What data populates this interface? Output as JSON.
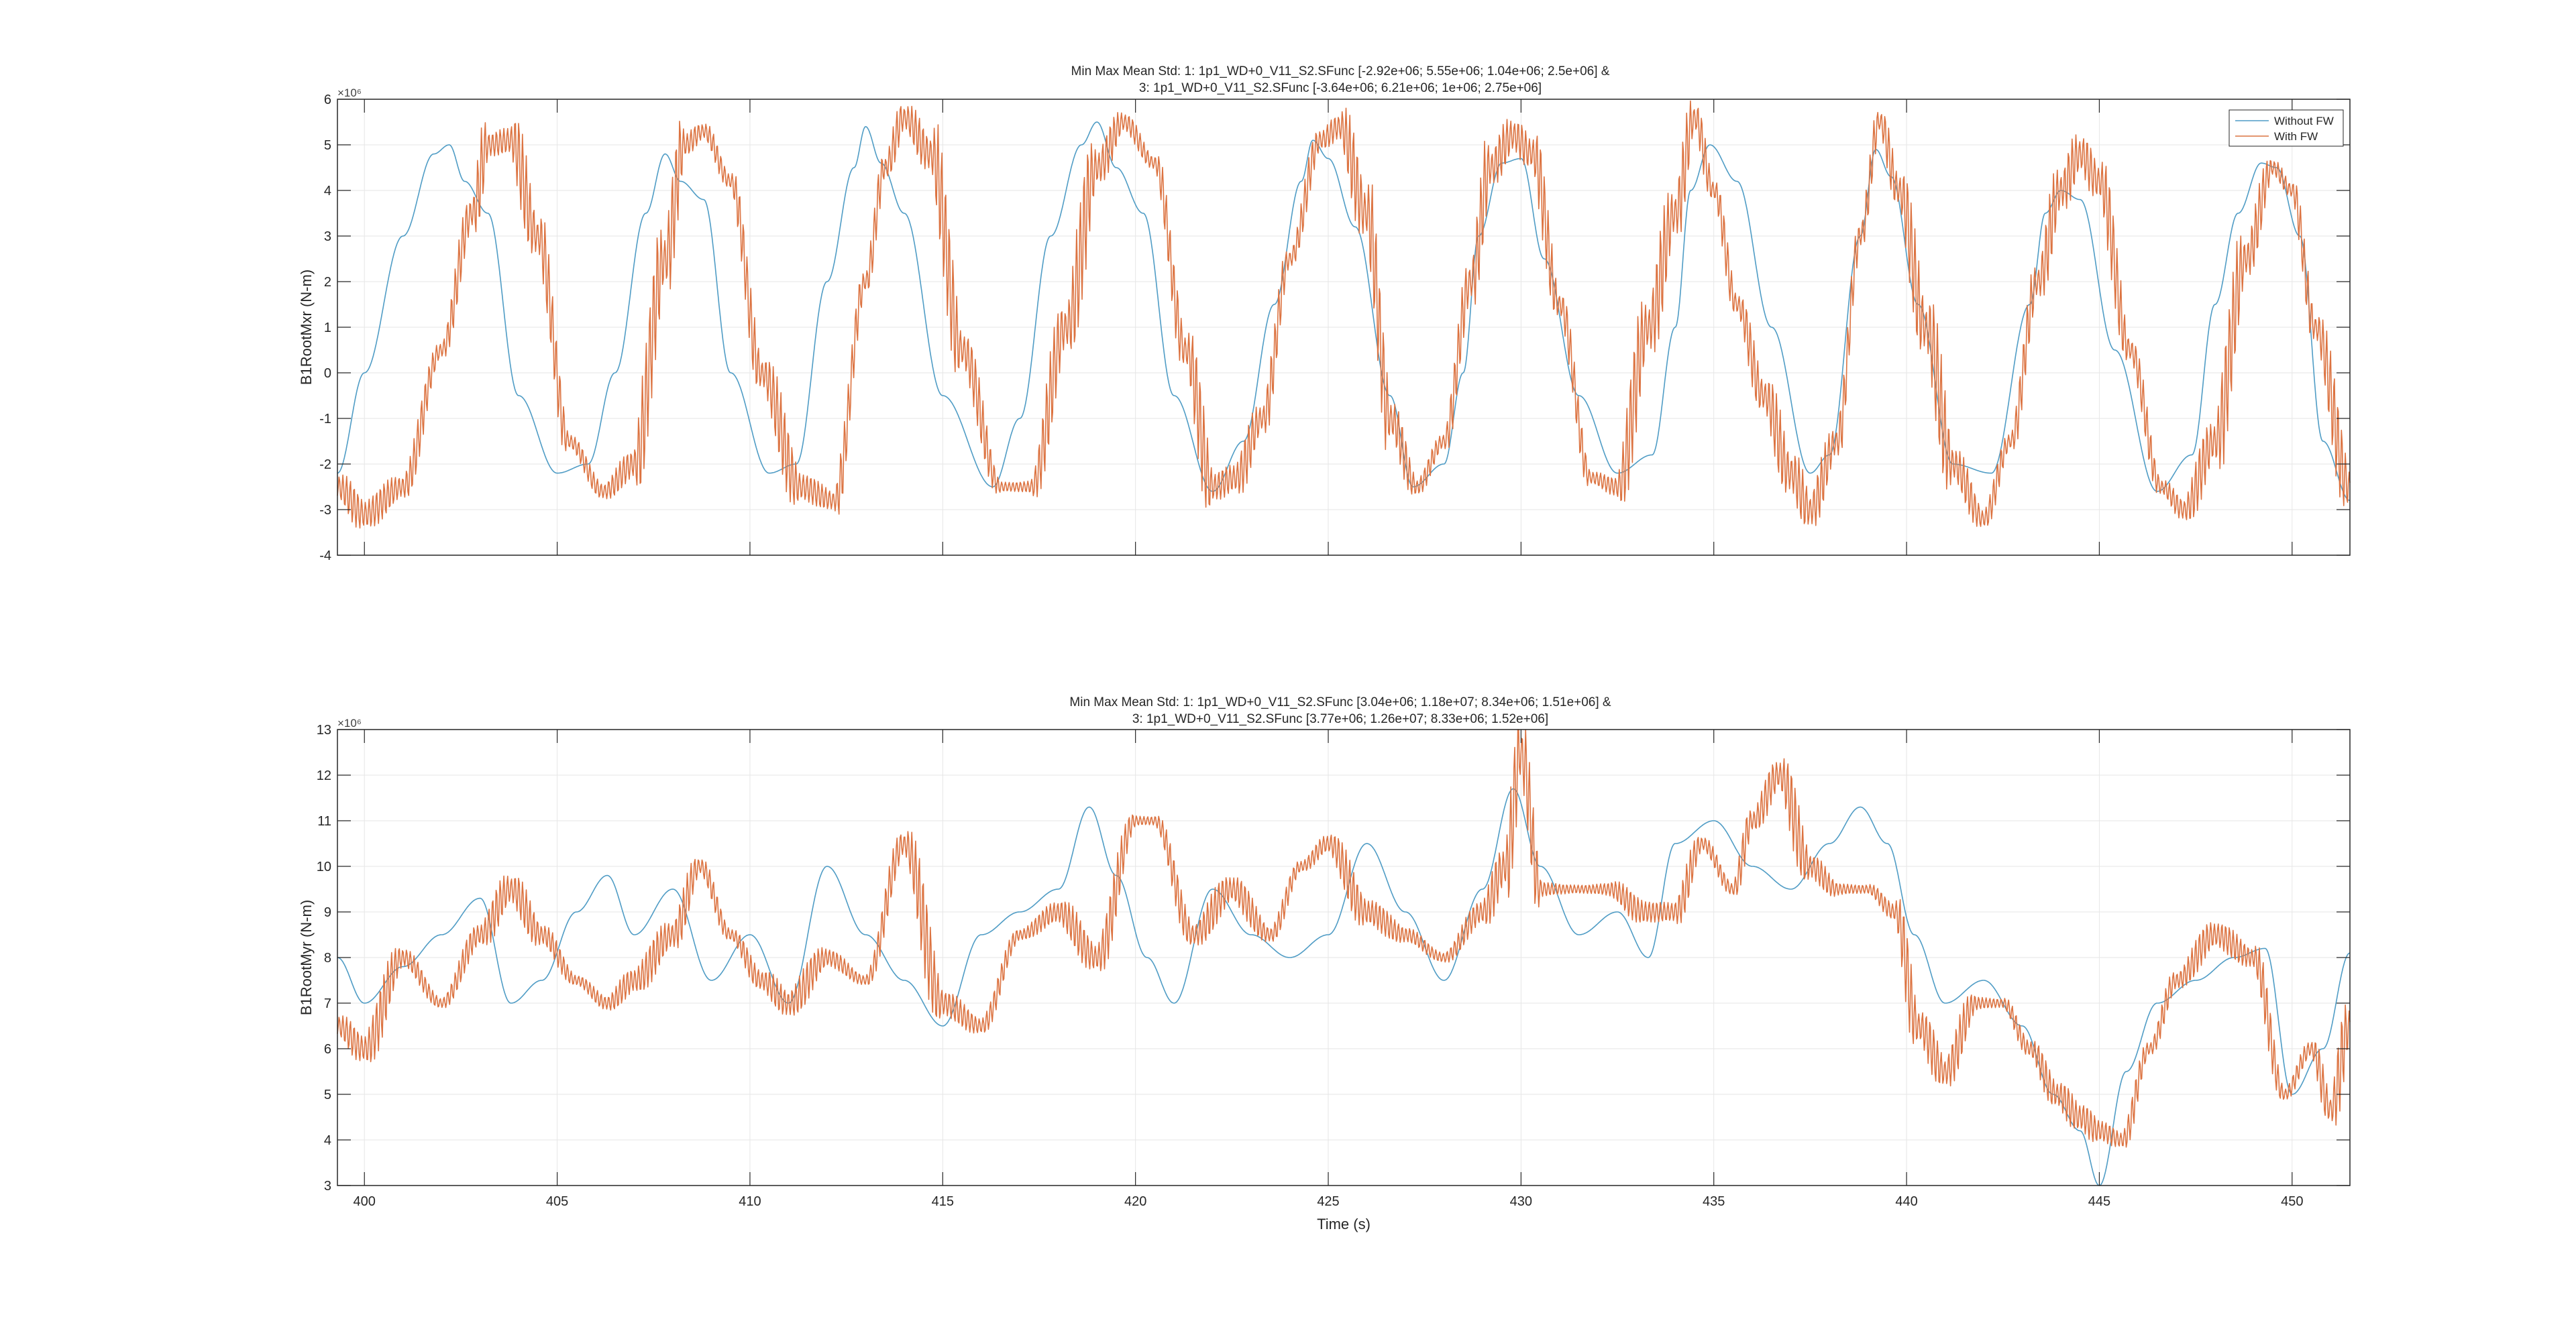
{
  "chart_data": [
    {
      "type": "line",
      "title_line1": "Min Max Mean Std: 1: 1p1_WD+0_V11_S2.SFunc [-2.92e+06; 5.55e+06; 1.04e+06; 2.5e+06] &",
      "title_line2": "3: 1p1_WD+0_V11_S2.SFunc [-3.64e+06; 6.21e+06; 1e+06; 2.75e+06]",
      "xlabel": "",
      "ylabel": "B1RootMxr (N-m)",
      "y_exponent": "×10⁶",
      "xlim": [
        399.3,
        451.5
      ],
      "ylim": [
        -4,
        6
      ],
      "yticks": [
        "-4",
        "-3",
        "-2",
        "-1",
        "0",
        "1",
        "2",
        "3",
        "4",
        "5",
        "6"
      ],
      "ytick_values": [
        -4,
        -3,
        -2,
        -1,
        0,
        1,
        2,
        3,
        4,
        5,
        6
      ],
      "xtick_values": [
        400,
        405,
        410,
        415,
        420,
        425,
        430,
        435,
        440,
        445,
        450
      ],
      "grid": true,
      "legend": {
        "position": "top-right",
        "entries": [
          "Without FW",
          "With FW"
        ]
      },
      "series": [
        {
          "name": "Without FW",
          "color": "#4f9cc5",
          "vib_amp": 0,
          "x": [
            399.3,
            400.0,
            401.0,
            401.8,
            402.2,
            402.6,
            403.2,
            404.0,
            405.0,
            405.8,
            406.5,
            407.3,
            407.8,
            408.2,
            408.8,
            409.5,
            410.5,
            411.2,
            412.0,
            412.7,
            413.0,
            413.4,
            414.0,
            415.0,
            416.3,
            417.0,
            417.8,
            418.6,
            419.0,
            419.5,
            420.2,
            421.0,
            422.0,
            422.8,
            423.6,
            424.3,
            424.6,
            425.0,
            425.7,
            426.6,
            427.2,
            428.0,
            428.5,
            428.9,
            429.5,
            430.0,
            430.6,
            431.5,
            432.5,
            433.4,
            434.0,
            434.4,
            434.9,
            435.6,
            436.5,
            437.5,
            438.0,
            438.8,
            439.2,
            439.6,
            440.3,
            441.2,
            442.2,
            443.2,
            443.6,
            444.0,
            444.5,
            445.4,
            446.5,
            447.4,
            448.0,
            448.6,
            449.2,
            449.6,
            450.2,
            450.8,
            451.5
          ],
          "y": [
            -2.2,
            0.0,
            3.0,
            4.8,
            5.0,
            4.2,
            3.5,
            -0.5,
            -2.2,
            -2.0,
            0.0,
            3.5,
            4.8,
            4.2,
            3.8,
            0.0,
            -2.2,
            -2.0,
            2.0,
            4.5,
            5.4,
            4.6,
            3.5,
            -0.5,
            -2.5,
            -1.0,
            3.0,
            5.0,
            5.5,
            4.5,
            3.5,
            -0.5,
            -2.6,
            -1.5,
            1.5,
            4.2,
            5.1,
            4.7,
            3.2,
            -0.5,
            -2.5,
            -2.0,
            0.0,
            3.0,
            4.6,
            4.7,
            2.5,
            -0.5,
            -2.2,
            -1.8,
            1.0,
            4.0,
            5.0,
            4.2,
            1.0,
            -2.2,
            -1.8,
            3.0,
            4.9,
            4.3,
            1.5,
            -2.0,
            -2.2,
            1.5,
            3.5,
            4.0,
            3.8,
            0.5,
            -2.6,
            -1.8,
            1.5,
            3.5,
            4.6,
            4.5,
            3.0,
            -1.5,
            -2.8
          ]
        },
        {
          "name": "With FW",
          "color": "#dc7341",
          "vib_amp": 1.0,
          "x": [
            399.3,
            400.0,
            401.0,
            402.0,
            402.8,
            403.2,
            403.8,
            404.5,
            405.3,
            406.2,
            407.0,
            407.8,
            408.3,
            408.8,
            409.5,
            410.3,
            411.3,
            412.2,
            413.0,
            413.5,
            414.0,
            414.7,
            415.5,
            416.5,
            417.3,
            418.2,
            419.0,
            419.7,
            420.5,
            421.3,
            422.0,
            422.6,
            423.3,
            424.0,
            424.8,
            425.3,
            426.0,
            426.6,
            427.3,
            428.0,
            428.7,
            429.2,
            429.8,
            430.3,
            431.0,
            431.8,
            432.5,
            433.3,
            434.0,
            434.5,
            435.0,
            435.6,
            436.3,
            437.0,
            437.5,
            438.2,
            438.8,
            439.3,
            439.8,
            440.5,
            441.2,
            442.0,
            442.7,
            443.4,
            444.0,
            444.5,
            445.0,
            445.8,
            446.6,
            447.2,
            448.0,
            448.8,
            449.5,
            450.0,
            450.6,
            451.5
          ],
          "y": [
            -2.5,
            -3.1,
            -2.5,
            0.5,
            3.5,
            5.0,
            5.1,
            3.0,
            -1.5,
            -2.6,
            -2.0,
            2.5,
            5.0,
            5.3,
            4.2,
            0.0,
            -2.5,
            -2.8,
            2.0,
            4.5,
            5.6,
            4.8,
            0.5,
            -2.5,
            -2.5,
            1.0,
            4.5,
            5.5,
            4.6,
            0.5,
            -2.5,
            -2.3,
            -1.0,
            2.5,
            5.1,
            5.4,
            3.5,
            -1.0,
            -2.5,
            -1.5,
            2.0,
            4.5,
            5.2,
            4.8,
            1.5,
            -2.3,
            -2.5,
            1.0,
            3.5,
            5.6,
            4.0,
            1.5,
            -0.5,
            -2.2,
            -3.0,
            -1.5,
            3.0,
            5.5,
            4.0,
            1.0,
            -2.0,
            -3.2,
            -1.5,
            2.0,
            4.0,
            4.8,
            4.2,
            0.5,
            -2.5,
            -3.0,
            -1.5,
            2.5,
            4.5,
            4.0,
            1.0,
            -2.5
          ]
        }
      ]
    },
    {
      "type": "line",
      "title_line1": "Min Max Mean Std: 1: 1p1_WD+0_V11_S2.SFunc [3.04e+06; 1.18e+07; 8.34e+06; 1.51e+06] &",
      "title_line2": "3: 1p1_WD+0_V11_S2.SFunc [3.77e+06; 1.26e+07; 8.33e+06; 1.52e+06]",
      "xlabel": "Time (s)",
      "ylabel": "B1RootMyr (N-m)",
      "y_exponent": "×10⁶",
      "xlim": [
        399.3,
        451.5
      ],
      "ylim": [
        3,
        13
      ],
      "yticks": [
        "3",
        "4",
        "5",
        "6",
        "7",
        "8",
        "9",
        "10",
        "11",
        "12",
        "13"
      ],
      "ytick_values": [
        3,
        4,
        5,
        6,
        7,
        8,
        9,
        10,
        11,
        12,
        13
      ],
      "xticks": [
        "400",
        "405",
        "410",
        "415",
        "420",
        "425",
        "430",
        "435",
        "440",
        "445",
        "450"
      ],
      "xtick_values": [
        400,
        405,
        410,
        415,
        420,
        425,
        430,
        435,
        440,
        445,
        450
      ],
      "grid": true,
      "series": [
        {
          "name": "Without FW",
          "color": "#4f9cc5",
          "vib_amp": 0,
          "x": [
            399.3,
            400.0,
            401.0,
            402.0,
            403.0,
            403.8,
            404.6,
            405.5,
            406.3,
            407.0,
            408.0,
            409.0,
            410.0,
            411.0,
            412.0,
            413.0,
            414.0,
            415.0,
            416.0,
            417.0,
            418.0,
            418.8,
            419.5,
            420.3,
            421.0,
            422.0,
            423.0,
            424.0,
            425.0,
            426.0,
            427.0,
            428.0,
            429.0,
            429.8,
            430.5,
            431.5,
            432.5,
            433.3,
            434.0,
            435.0,
            436.0,
            437.0,
            438.0,
            438.8,
            439.5,
            440.2,
            441.0,
            442.0,
            443.0,
            443.8,
            444.5,
            445.0,
            445.7,
            446.5,
            447.5,
            448.5,
            449.3,
            450.0,
            450.8,
            451.5
          ],
          "y": [
            8.0,
            7.0,
            7.8,
            8.5,
            9.3,
            7.0,
            7.5,
            9.0,
            9.8,
            8.5,
            9.5,
            7.5,
            8.5,
            7.0,
            10.0,
            8.5,
            7.5,
            6.5,
            8.5,
            9.0,
            9.5,
            11.3,
            9.8,
            8.0,
            7.0,
            9.5,
            8.5,
            8.0,
            8.5,
            10.5,
            9.0,
            7.5,
            9.5,
            11.7,
            10.0,
            8.5,
            9.0,
            8.0,
            10.5,
            11.0,
            10.0,
            9.5,
            10.5,
            11.3,
            10.5,
            8.5,
            7.0,
            7.5,
            6.5,
            5.0,
            4.2,
            3.0,
            5.5,
            7.0,
            7.5,
            8.0,
            8.2,
            5.0,
            6.0,
            8.1
          ]
        },
        {
          "name": "With FW",
          "color": "#dc7341",
          "vib_amp": 0.9,
          "x": [
            399.3,
            400.0,
            401.0,
            402.0,
            403.0,
            403.8,
            404.6,
            405.5,
            406.3,
            407.0,
            408.0,
            408.7,
            409.5,
            410.3,
            411.0,
            412.0,
            413.0,
            414.0,
            415.0,
            416.0,
            417.0,
            418.0,
            419.0,
            420.0,
            420.5,
            421.5,
            422.5,
            423.5,
            424.3,
            425.0,
            426.0,
            427.0,
            428.0,
            429.0,
            429.6,
            430.0,
            430.5,
            431.3,
            432.3,
            433.2,
            434.0,
            434.7,
            435.5,
            436.0,
            436.7,
            437.5,
            438.2,
            439.0,
            439.7,
            440.3,
            441.0,
            441.8,
            442.5,
            443.2,
            443.9,
            444.5,
            445.0,
            445.6,
            446.3,
            447.0,
            448.0,
            449.0,
            449.8,
            450.5,
            451.0,
            451.5
          ],
          "y": [
            6.5,
            6.0,
            8.0,
            7.0,
            8.5,
            9.5,
            8.5,
            7.5,
            7.0,
            7.5,
            8.5,
            10.0,
            8.5,
            7.5,
            7.0,
            8.0,
            7.5,
            10.5,
            7.0,
            6.5,
            8.5,
            9.0,
            8.0,
            11.0,
            11.0,
            8.5,
            9.5,
            8.5,
            10.0,
            10.5,
            9.0,
            8.5,
            8.0,
            9.0,
            10.0,
            12.5,
            9.5,
            9.5,
            9.5,
            9.0,
            9.0,
            10.5,
            9.5,
            11.0,
            12.0,
            10.0,
            9.5,
            9.5,
            9.0,
            6.5,
            5.5,
            7.0,
            7.0,
            6.0,
            5.0,
            4.5,
            4.2,
            4.0,
            6.0,
            7.5,
            8.5,
            8.0,
            5.0,
            6.0,
            4.7,
            6.5
          ]
        }
      ]
    }
  ]
}
